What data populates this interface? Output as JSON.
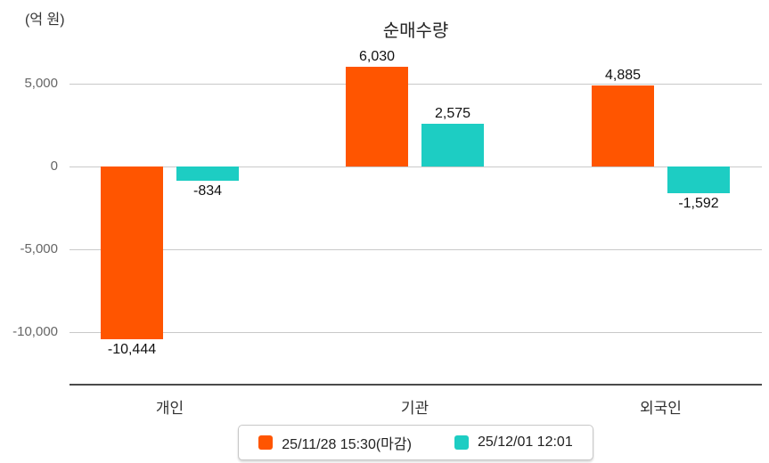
{
  "chart_data": {
    "type": "bar",
    "title": "순매수량",
    "unit_label": "(억 원)",
    "categories": [
      "개인",
      "기관",
      "외국인"
    ],
    "series": [
      {
        "name": "25/11/28 15:30(마감)",
        "color": "#ff5500",
        "values": [
          -10444,
          6030,
          4885
        ],
        "value_labels": [
          "-10,444",
          "6,030",
          "4,885"
        ]
      },
      {
        "name": "25/12/01 12:01",
        "color": "#1dcdc3",
        "values": [
          -834,
          2575,
          -1592
        ],
        "value_labels": [
          "-834",
          "2,575",
          "-1,592"
        ]
      }
    ],
    "yticks": [
      {
        "value": 5000,
        "label": "5,000"
      },
      {
        "value": 0,
        "label": "0"
      },
      {
        "value": -5000,
        "label": "-5,000"
      },
      {
        "value": -10000,
        "label": "-10,000"
      }
    ],
    "ylim": [
      -13000,
      7400
    ],
    "grid": true,
    "legend_position": "bottom"
  },
  "colors": {
    "grid": "#c9c9c9",
    "axis": "#4a4a4a",
    "tick_text": "#666666",
    "value_text": "#111111",
    "series_1": "#ff5500",
    "series_2": "#1dcdc3"
  }
}
